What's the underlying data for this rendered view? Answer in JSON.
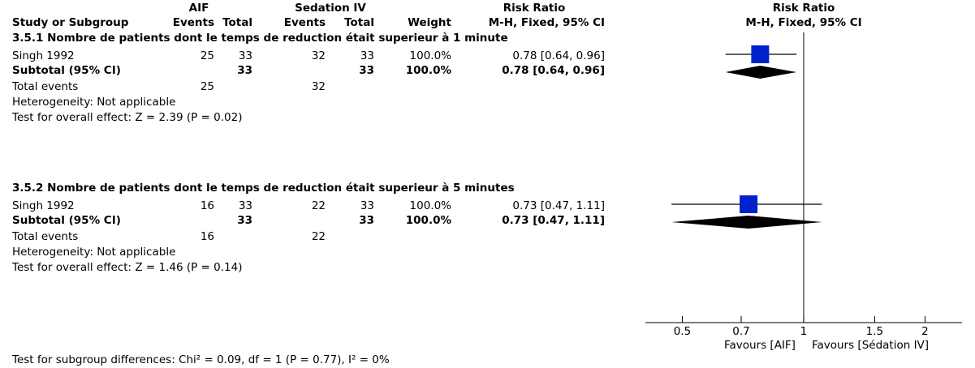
{
  "chart_data": {
    "type": "forest",
    "headers": {
      "group_left": "AIF",
      "group_right": "Sedation IV",
      "effect": "Risk Ratio",
      "study": "Study or Subgroup",
      "events_left": "Events",
      "total_left": "Total",
      "events_right": "Events",
      "total_right": "Total",
      "weight": "Weight",
      "method": "M-H, Fixed, 95% CI",
      "plot_title": "Risk Ratio",
      "plot_method": "M-H, Fixed, 95% CI"
    },
    "groups": [
      {
        "title": "3.5.1 Nombre de patients dont le temps de reduction était superieur à 1 minute",
        "studies": [
          {
            "name": "Singh 1992",
            "events_left": 25,
            "total_left": 33,
            "events_right": 32,
            "total_right": 33,
            "weight": "100.0%",
            "ci_label": "0.78 [0.64, 0.96]",
            "rr": 0.78,
            "lo": 0.64,
            "hi": 0.96
          }
        ],
        "subtotal": {
          "label": "Subtotal (95% CI)",
          "total_left": 33,
          "total_right": 33,
          "weight": "100.0%",
          "ci_label": "0.78 [0.64, 0.96]",
          "rr": 0.78,
          "lo": 0.64,
          "hi": 0.96
        },
        "total_events": {
          "label": "Total events",
          "events_left": 25,
          "events_right": 32
        },
        "heterogeneity": "Heterogeneity: Not applicable",
        "overall_effect": "Test for overall effect: Z = 2.39 (P = 0.02)"
      },
      {
        "title": "3.5.2 Nombre de patients dont le temps de reduction était superieur à 5 minutes",
        "studies": [
          {
            "name": "Singh 1992",
            "events_left": 16,
            "total_left": 33,
            "events_right": 22,
            "total_right": 33,
            "weight": "100.0%",
            "ci_label": "0.73 [0.47, 1.11]",
            "rr": 0.73,
            "lo": 0.47,
            "hi": 1.11
          }
        ],
        "subtotal": {
          "label": "Subtotal (95% CI)",
          "total_left": 33,
          "total_right": 33,
          "weight": "100.0%",
          "ci_label": "0.73 [0.47, 1.11]",
          "rr": 0.73,
          "lo": 0.47,
          "hi": 1.11
        },
        "total_events": {
          "label": "Total events",
          "events_left": 16,
          "events_right": 22
        },
        "heterogeneity": "Heterogeneity: Not applicable",
        "overall_effect": "Test for overall effect: Z = 1.46 (P = 0.14)"
      }
    ],
    "subgroup_test": "Test for subgroup differences: Chi² = 0.09, df = 1 (P = 0.77), I² = 0%",
    "xscale": "log",
    "xlim": [
      0.405,
      2.47
    ],
    "xticks": [
      0.5,
      0.7,
      1,
      1.5,
      2
    ],
    "favours_left": "Favours [AIF]",
    "favours_right": "Favours [Sédation IV]",
    "marker_color": "#0022cc",
    "diamond_color": "#000000"
  }
}
